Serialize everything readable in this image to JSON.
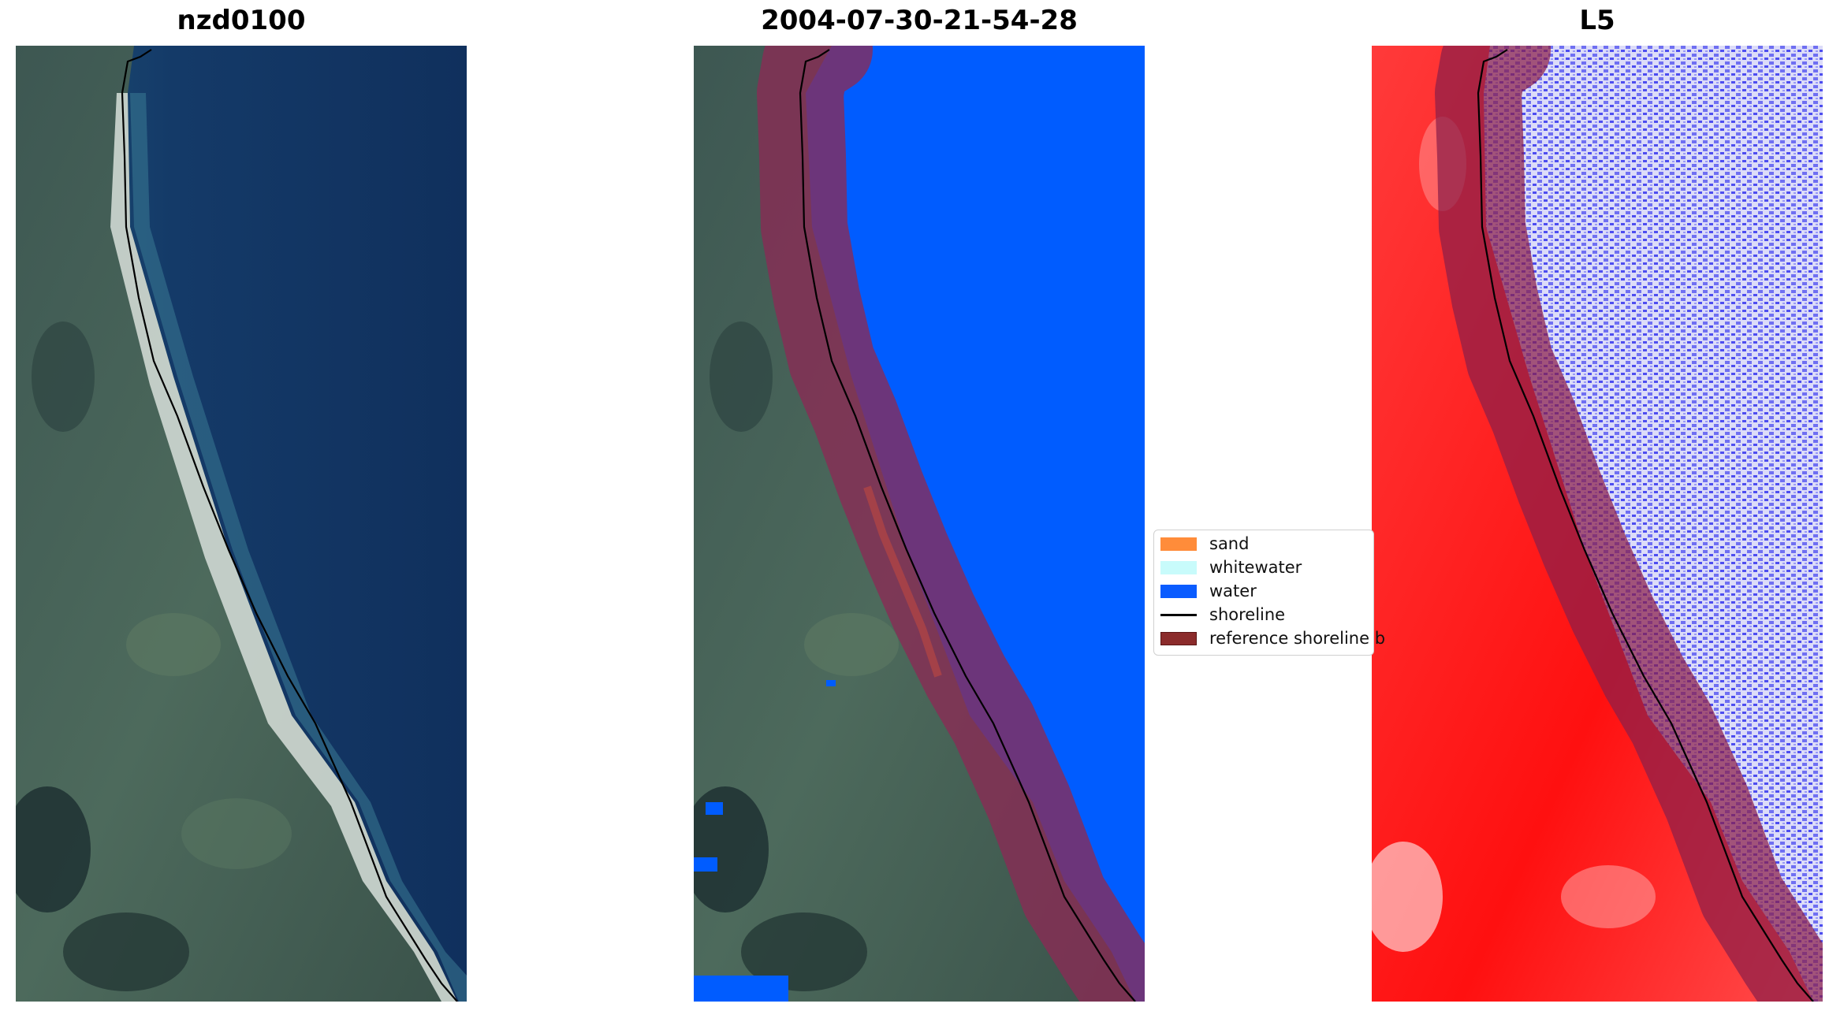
{
  "titles": {
    "left": "nzd0100",
    "middle": "2004-07-30-21-54-28",
    "right": "L5"
  },
  "legend": {
    "items": [
      {
        "label": "sand",
        "color": "#ff8c3a"
      },
      {
        "label": "whitewater",
        "color": "#c8fbfb"
      },
      {
        "label": "water",
        "color": "#0a5cff"
      },
      {
        "label": "shoreline",
        "color": "#000000"
      },
      {
        "label": "reference shoreline b",
        "color": "#8b2b2b"
      }
    ]
  },
  "colors": {
    "ocean": "#123360",
    "land": "#3f5a55",
    "water_class": "#005cff",
    "buffer": "#8a2a55",
    "index_land": "#ff1b1b",
    "index_water": "#5d5df0"
  }
}
